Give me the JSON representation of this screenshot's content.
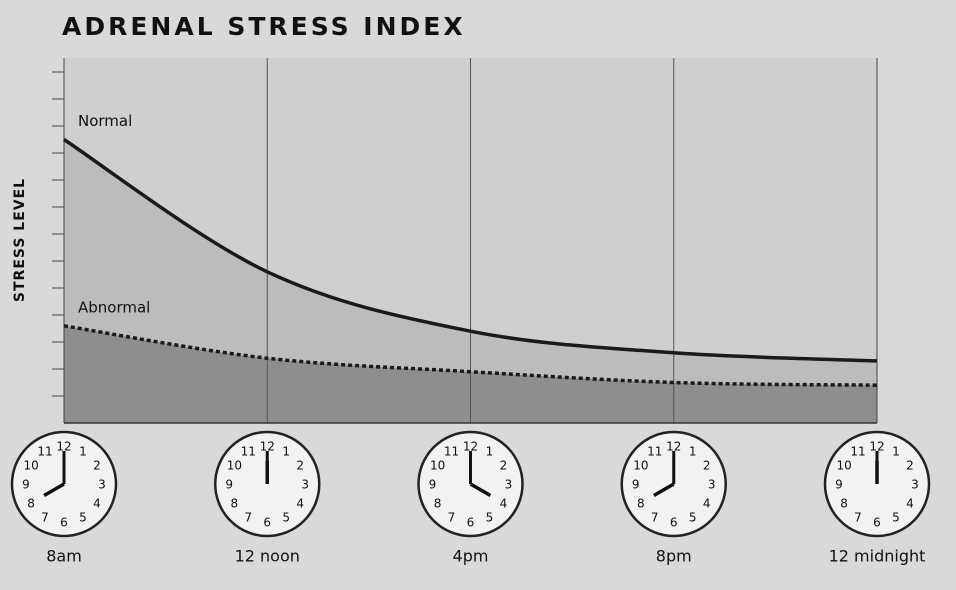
{
  "chart_data": {
    "type": "line",
    "title": "ADRENAL STRESS INDEX",
    "y_label": "STRESS LEVEL",
    "categories": [
      "8am",
      "12 noon",
      "4pm",
      "8pm",
      "12 midnight"
    ],
    "series": [
      {
        "name": "Normal",
        "color": "#1a1a1a",
        "fill": "#bcbcbc",
        "dash": false,
        "values": [
          10.5,
          5.6,
          3.4,
          2.6,
          2.3
        ]
      },
      {
        "name": "Abnormal",
        "color": "#1a1a1a",
        "fill": "#8e8e8e",
        "dash": true,
        "values": [
          3.6,
          2.4,
          1.9,
          1.5,
          1.4
        ]
      }
    ],
    "ylim": [
      0,
      13
    ],
    "yticks": [
      1,
      2,
      3,
      4,
      5,
      6,
      7,
      8,
      9,
      10,
      11,
      12,
      13
    ],
    "grid": true,
    "clock_face": [
      "12",
      "1",
      "2",
      "3",
      "4",
      "5",
      "6",
      "7",
      "8",
      "9",
      "10",
      "11"
    ]
  }
}
